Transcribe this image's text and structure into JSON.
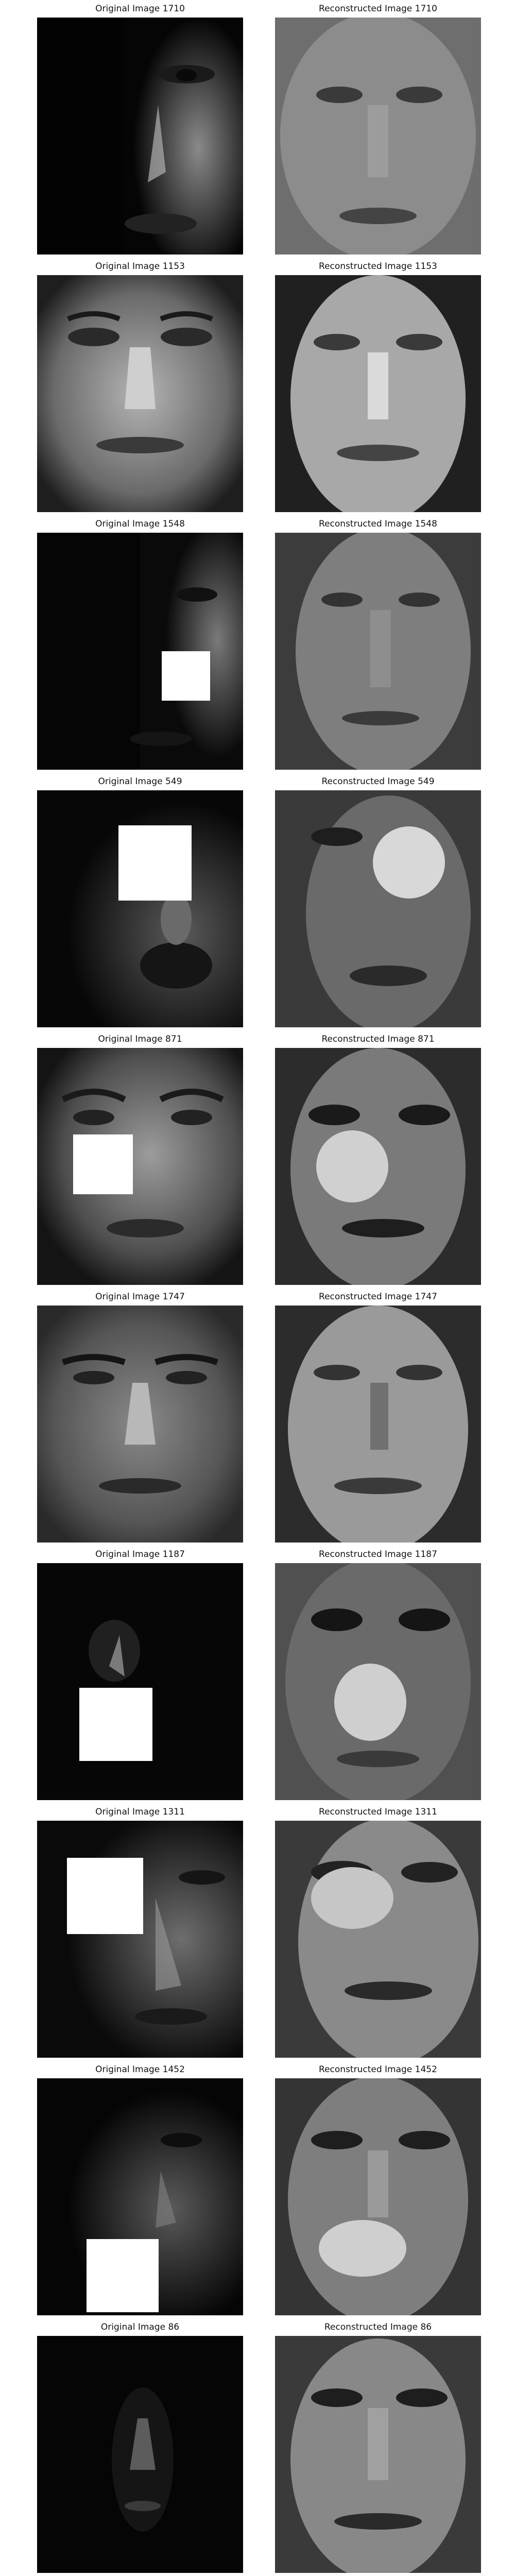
{
  "pairs": [
    {
      "original_title": "Original Image 1710",
      "reconstructed_title": "Reconstructed Image 1710",
      "occluded": false
    },
    {
      "original_title": "Original Image 1153",
      "reconstructed_title": "Reconstructed Image 1153",
      "occluded": false
    },
    {
      "original_title": "Original Image 1548",
      "reconstructed_title": "Reconstructed Image 1548",
      "occluded": true
    },
    {
      "original_title": "Original Image 549",
      "reconstructed_title": "Reconstructed Image 549",
      "occluded": true
    },
    {
      "original_title": "Original Image 871",
      "reconstructed_title": "Reconstructed Image 871",
      "occluded": true
    },
    {
      "original_title": "Original Image 1747",
      "reconstructed_title": "Reconstructed Image 1747",
      "occluded": false
    },
    {
      "original_title": "Original Image 1187",
      "reconstructed_title": "Reconstructed Image 1187",
      "occluded": true
    },
    {
      "original_title": "Original Image 1311",
      "reconstructed_title": "Reconstructed Image 1311",
      "occluded": true
    },
    {
      "original_title": "Original Image 1452",
      "reconstructed_title": "Reconstructed Image 1452",
      "occluded": true
    },
    {
      "original_title": "Original Image 86",
      "reconstructed_title": "Reconstructed Image 86",
      "occluded": false
    }
  ]
}
